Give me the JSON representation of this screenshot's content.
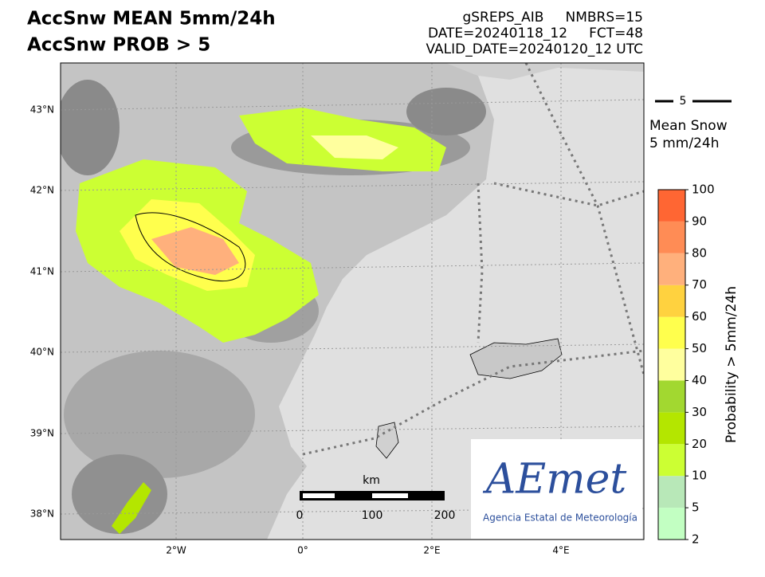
{
  "header": {
    "title_lines": [
      "AccSnw MEAN 5mm/24h",
      "AccSnw PROB > 5"
    ],
    "info_lines": [
      "gSREPS_AIB     NMBRS=15",
      "DATE=20240118_12     FCT=48",
      "VALID_DATE=20240120_12 UTC"
    ]
  },
  "map": {
    "lat_labels": [
      "43°N",
      "42°N",
      "41°N",
      "40°N",
      "39°N",
      "38°N"
    ],
    "lon_labels": [
      "2°W",
      "0°",
      "2°E",
      "4°E"
    ],
    "scale_bar": {
      "unit": "km",
      "labels": [
        "0",
        "100",
        "200"
      ]
    }
  },
  "legend": {
    "contour_label": "5",
    "title_lines": [
      "Mean Snow",
      "5 mm/24h"
    ]
  },
  "colorbar": {
    "label": "Probability > 5mm/24h",
    "levels": [
      2,
      5,
      10,
      20,
      30,
      40,
      50,
      60,
      70,
      80,
      90,
      100
    ],
    "colors": [
      "#c2ffc2",
      "#b8e8b8",
      "#ccff33",
      "#b4e600",
      "#a2d830",
      "#ffff9e",
      "#ffff4d",
      "#ffd23f",
      "#ffb07c",
      "#ff8c55",
      "#ff6633"
    ]
  },
  "logo": {
    "name": "AEmet",
    "subtitle": "Agencia Estatal de Meteorología"
  }
}
